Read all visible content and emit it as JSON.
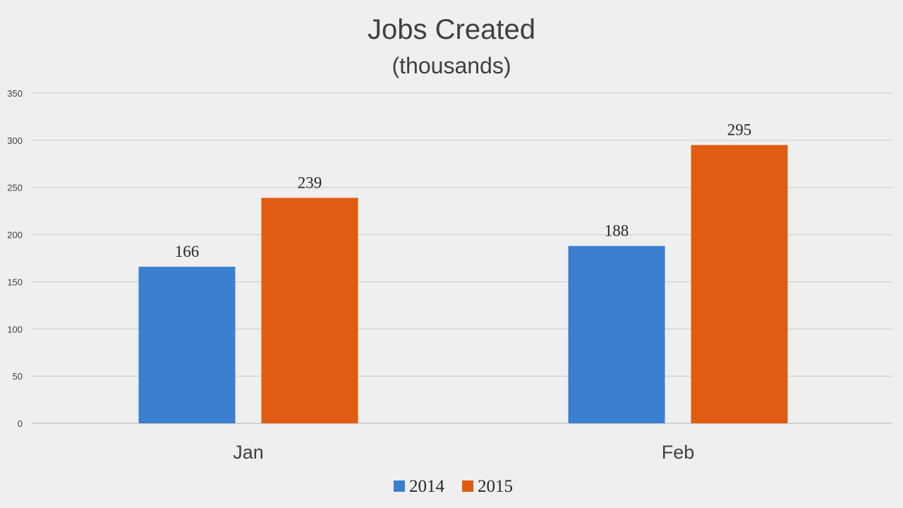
{
  "chart_data": {
    "type": "bar",
    "title": "Jobs Created",
    "subtitle": "(thousands)",
    "categories": [
      "Jan",
      "Feb"
    ],
    "series": [
      {
        "name": "2014",
        "values": [
          166,
          188
        ],
        "color": "#3a7fd0"
      },
      {
        "name": "2015",
        "values": [
          239,
          295
        ],
        "color": "#e05c12"
      }
    ],
    "y_ticks": [
      0,
      50,
      100,
      150,
      200,
      250,
      300,
      350
    ],
    "ylim": [
      0,
      350
    ],
    "grid": true,
    "legend_position": "bottom",
    "data_labels": true
  }
}
